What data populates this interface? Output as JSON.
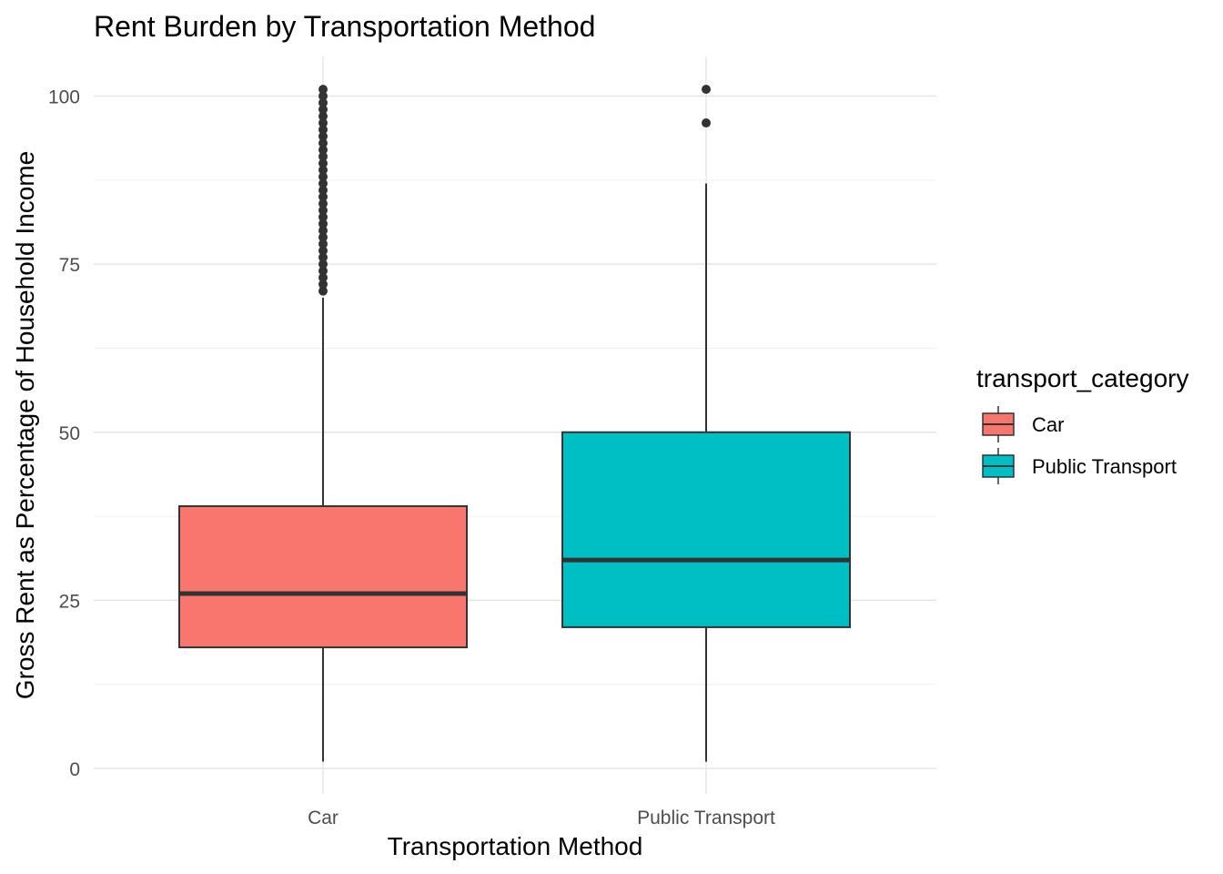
{
  "chart_data": {
    "type": "boxplot",
    "title": "Rent Burden by Transportation Method",
    "xlabel": "Transportation Method",
    "ylabel": "Gross Rent as Percentage of Household Income",
    "categories": [
      "Car",
      "Public Transport"
    ],
    "ylim": [
      -5,
      106
    ],
    "yticks": [
      0,
      25,
      50,
      75,
      100
    ],
    "ytick_labels": [
      "0",
      "25",
      "50",
      "75",
      "100"
    ],
    "grid": true,
    "legend": {
      "title": "transport_category",
      "placement": "right",
      "entries": [
        "Car",
        "Public Transport"
      ]
    },
    "series": [
      {
        "category": "Car",
        "color": "#F8766D",
        "whisker_low": 1,
        "q1": 18,
        "median": 26,
        "q3": 39,
        "whisker_high": 70,
        "outliers": [
          71,
          72,
          73,
          74,
          75,
          76,
          77,
          78,
          79,
          80,
          81,
          82,
          83,
          84,
          85,
          86,
          87,
          88,
          89,
          90,
          91,
          92,
          93,
          94,
          95,
          96,
          97,
          98,
          99,
          100,
          101
        ]
      },
      {
        "category": "Public Transport",
        "color": "#00BFC4",
        "whisker_low": 1,
        "q1": 21,
        "median": 31,
        "q3": 50,
        "whisker_high": 87,
        "outliers": [
          96,
          101
        ]
      }
    ]
  }
}
